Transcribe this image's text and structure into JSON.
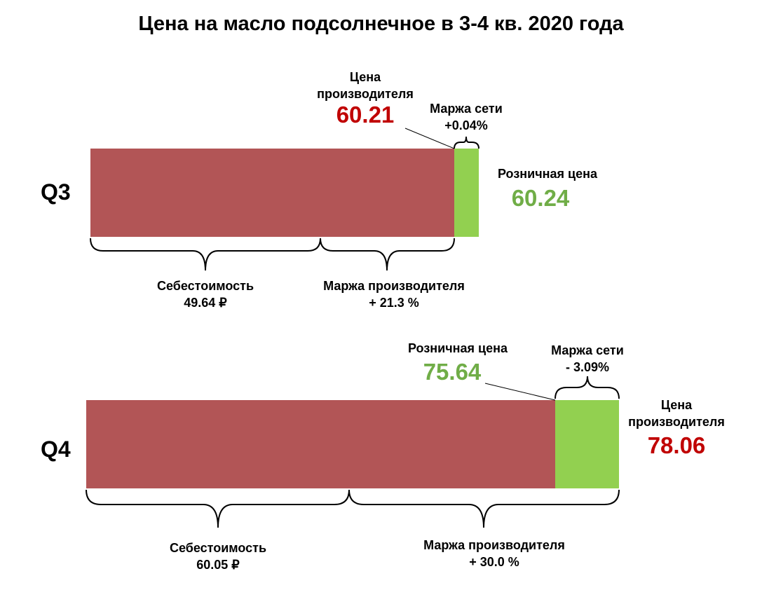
{
  "title": "Цена на масло подсолнечное в 3-4 кв. 2020 года",
  "colors": {
    "cost": "#b25556",
    "margin_net": "#92d050",
    "producer_value": "#c00000",
    "retail_value": "#70ad47"
  },
  "q3": {
    "label": "Q3",
    "producer_label": "Цена производителя",
    "producer_price": "60.21",
    "net_margin_label": "Маржа сети",
    "net_margin_value": "+0.04%",
    "retail_label": "Розничная цена",
    "retail_price": "60.24",
    "cost_label": "Себестоимость",
    "cost_value": "49.64 ₽",
    "producer_margin_label": "Маржа производителя",
    "producer_margin_value": "+ 21.3 %"
  },
  "q4": {
    "label": "Q4",
    "retail_label": "Розничная цена",
    "retail_price": "75.64",
    "net_margin_label": "Маржа сети",
    "net_margin_value": "- 3.09%",
    "producer_label": "Цена производителя",
    "producer_price": "78.06",
    "cost_label": "Себестоимость",
    "cost_value": "60.05 ₽",
    "producer_margin_label": "Маржа производителя",
    "producer_margin_value": "+ 30.0 %"
  },
  "chart_data": [
    {
      "type": "bar",
      "orientation": "horizontal-stacked",
      "category": "Q3",
      "segments": [
        {
          "name": "Цена производителя",
          "value": 60.21
        },
        {
          "name": "Маржа сети",
          "value": 0.03,
          "percent": 0.04
        }
      ],
      "total": 60.24,
      "cost": 49.64,
      "producer_margin_percent": 21.3
    },
    {
      "type": "bar",
      "orientation": "horizontal-stacked",
      "category": "Q4",
      "segments": [
        {
          "name": "Розничная цена",
          "value": 75.64
        },
        {
          "name": "Маржа сети",
          "value": 2.42,
          "percent": -3.09
        }
      ],
      "total": 78.06,
      "cost": 60.05,
      "producer_margin_percent": 30.0
    }
  ]
}
